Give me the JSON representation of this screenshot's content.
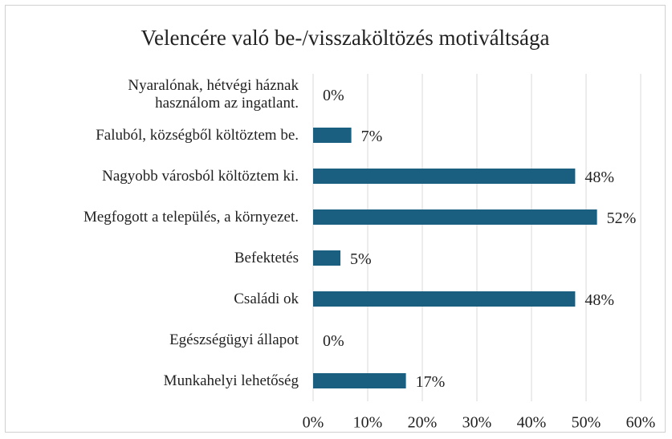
{
  "chart_data": {
    "type": "bar",
    "orientation": "horizontal",
    "title": "Velencére való be-/visszaköltözés motiváltsága",
    "categories": [
      "Nyaralónak, hétvégi háznak használom az ingatlant.",
      "Faluból, községből költöztem be.",
      "Nagyobb városból költöztem ki.",
      "Megfogott a település, a környezet.",
      "Befektetés",
      "Családi ok",
      "Egészségügyi állapot",
      "Munkahelyi lehetőség"
    ],
    "values": [
      0,
      7,
      48,
      52,
      5,
      48,
      0,
      17
    ],
    "value_labels": [
      "0%",
      "7%",
      "48%",
      "52%",
      "5%",
      "48%",
      "0%",
      "17%"
    ],
    "color": "#1b5f80",
    "xlim": [
      0,
      60
    ],
    "xticks": [
      {
        "value": 0,
        "label": "0%"
      },
      {
        "value": 10,
        "label": "10%"
      },
      {
        "value": 20,
        "label": "20%"
      },
      {
        "value": 30,
        "label": "30%"
      },
      {
        "value": 40,
        "label": "40%"
      },
      {
        "value": 50,
        "label": "50%"
      },
      {
        "value": 60,
        "label": "60%"
      }
    ],
    "grid": true
  }
}
